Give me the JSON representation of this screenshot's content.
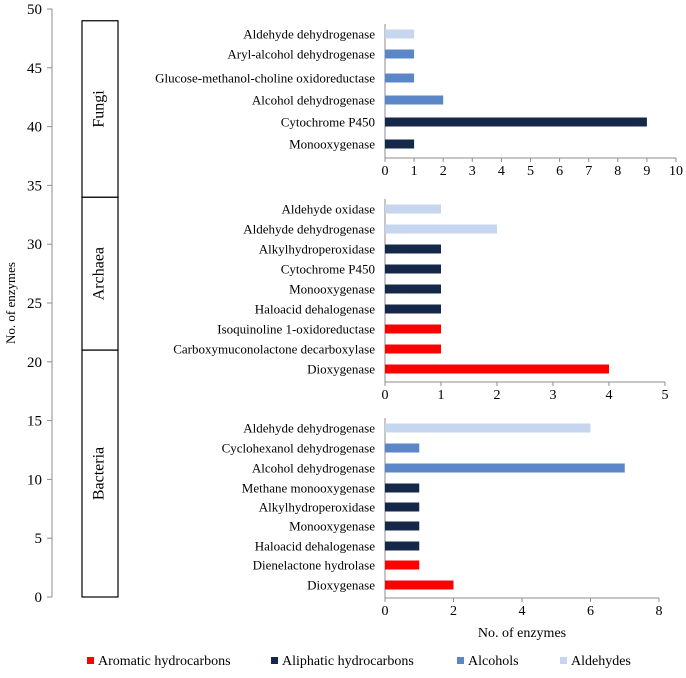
{
  "colors": {
    "aromatic": "#ff0000",
    "aliphatic": "#16284a",
    "alcohols": "#5b87c8",
    "aldehydes": "#c5d6ee",
    "axis": "#8c8c8c"
  },
  "chart_data": [
    {
      "type": "bar",
      "name": "left-axis",
      "ylabel": "No. of enzymes",
      "ylim": [
        0,
        50
      ],
      "yticks": [
        "0",
        "5",
        "10",
        "15",
        "20",
        "25",
        "30",
        "35",
        "40",
        "45",
        "50"
      ],
      "groups": [
        {
          "label": "Bacteria",
          "range": [
            0,
            21
          ]
        },
        {
          "label": "Archaea",
          "range": [
            21,
            34
          ]
        },
        {
          "label": "Fungi",
          "range": [
            34,
            49
          ]
        }
      ]
    },
    {
      "type": "bar",
      "orientation": "horizontal",
      "name": "fungi",
      "xlim": [
        0,
        10
      ],
      "xticks": [
        "0",
        "1",
        "2",
        "3",
        "4",
        "5",
        "6",
        "7",
        "8",
        "9",
        "10"
      ],
      "categories": [
        "Aldehyde dehydrogenase",
        "Aryl-alcohol dehydrogenase",
        "Glucose-methanol-choline oxidoreductase",
        "Alcohol dehydrogenase",
        "Cytochrome P450",
        "Monooxygenase"
      ],
      "values": [
        1,
        1,
        1,
        2,
        9,
        1
      ],
      "classes": [
        "aldehydes",
        "alcohols",
        "alcohols",
        "alcohols",
        "aliphatic",
        "aliphatic"
      ]
    },
    {
      "type": "bar",
      "orientation": "horizontal",
      "name": "archaea",
      "xlim": [
        0,
        5
      ],
      "xticks": [
        "0",
        "1",
        "2",
        "3",
        "4",
        "5"
      ],
      "categories": [
        "Aldehyde oxidase",
        "Aldehyde dehydrogenase",
        "Alkylhydroperoxidase",
        "Cytochrome P450",
        "Monooxygenase",
        "Haloacid dehalogenase",
        "Isoquinoline 1-oxidoreductase",
        "Carboxymuconolactone decarboxylase",
        "Dioxygenase"
      ],
      "values": [
        1,
        2,
        1,
        1,
        1,
        1,
        1,
        1,
        4
      ],
      "classes": [
        "aldehydes",
        "aldehydes",
        "aliphatic",
        "aliphatic",
        "aliphatic",
        "aliphatic",
        "aromatic",
        "aromatic",
        "aromatic"
      ]
    },
    {
      "type": "bar",
      "orientation": "horizontal",
      "name": "bacteria",
      "xlabel": "No. of enzymes",
      "xlim": [
        0,
        8
      ],
      "xticks": [
        "0",
        "2",
        "4",
        "6",
        "8"
      ],
      "categories": [
        "Aldehyde dehydrogenase",
        "Cyclohexanol dehydrogenase",
        "Alcohol dehydrogenase",
        "Methane monooxygenase",
        "Alkylhydroperoxidase",
        "Monooxygenase",
        "Haloacid dehalogenase",
        "Dienelactone hydrolase",
        "Dioxygenase"
      ],
      "values": [
        6,
        1,
        7,
        1,
        1,
        1,
        1,
        1,
        2
      ],
      "classes": [
        "aldehydes",
        "alcohols",
        "alcohols",
        "aliphatic",
        "aliphatic",
        "aliphatic",
        "aliphatic",
        "aromatic",
        "aromatic"
      ]
    }
  ],
  "legend": {
    "items": [
      {
        "label": "Aromatic hydrocarbons",
        "cls": "aromatic"
      },
      {
        "label": "Aliphatic hydrocarbons",
        "cls": "aliphatic"
      },
      {
        "label": "Alcohols",
        "cls": "alcohols"
      },
      {
        "label": "Aldehydes",
        "cls": "aldehydes"
      }
    ]
  }
}
